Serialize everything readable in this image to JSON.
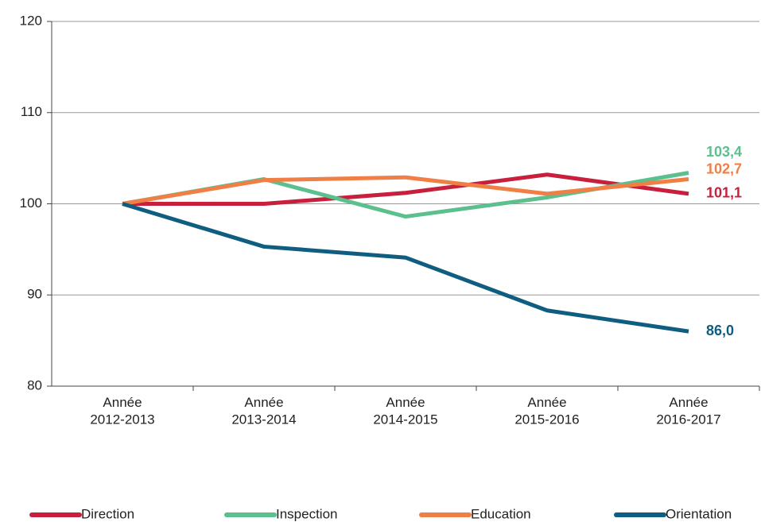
{
  "chart_data": {
    "type": "line",
    "categories": [
      "Année\n2012-2013",
      "Année\n2013-2014",
      "Année\n2014-2015",
      "Année\n2015-2016",
      "Année\n2016-2017"
    ],
    "series": [
      {
        "name": "Direction",
        "color": "#c8203c",
        "values": [
          100,
          100,
          101.2,
          103.2,
          101.1
        ],
        "value_labels": [
          null,
          null,
          null,
          null,
          "101,1"
        ]
      },
      {
        "name": "Inspection",
        "color": "#5cbf8e",
        "values": [
          100,
          102.7,
          98.6,
          100.7,
          103.4
        ],
        "value_labels": [
          null,
          null,
          null,
          null,
          "103,4"
        ]
      },
      {
        "name": "Education",
        "color": "#f07f45",
        "values": [
          100,
          102.6,
          102.9,
          101.1,
          102.7
        ],
        "value_labels": [
          null,
          null,
          null,
          null,
          "102,7"
        ]
      },
      {
        "name": "Orientation",
        "color": "#0f5d80",
        "values": [
          100,
          95.3,
          94.1,
          88.3,
          86.0
        ],
        "value_labels": [
          null,
          null,
          null,
          null,
          "86,0"
        ]
      }
    ],
    "ylim": [
      80,
      120
    ],
    "yticks": [
      80,
      90,
      100,
      110,
      120
    ],
    "grid": true,
    "legend": "bottom"
  }
}
